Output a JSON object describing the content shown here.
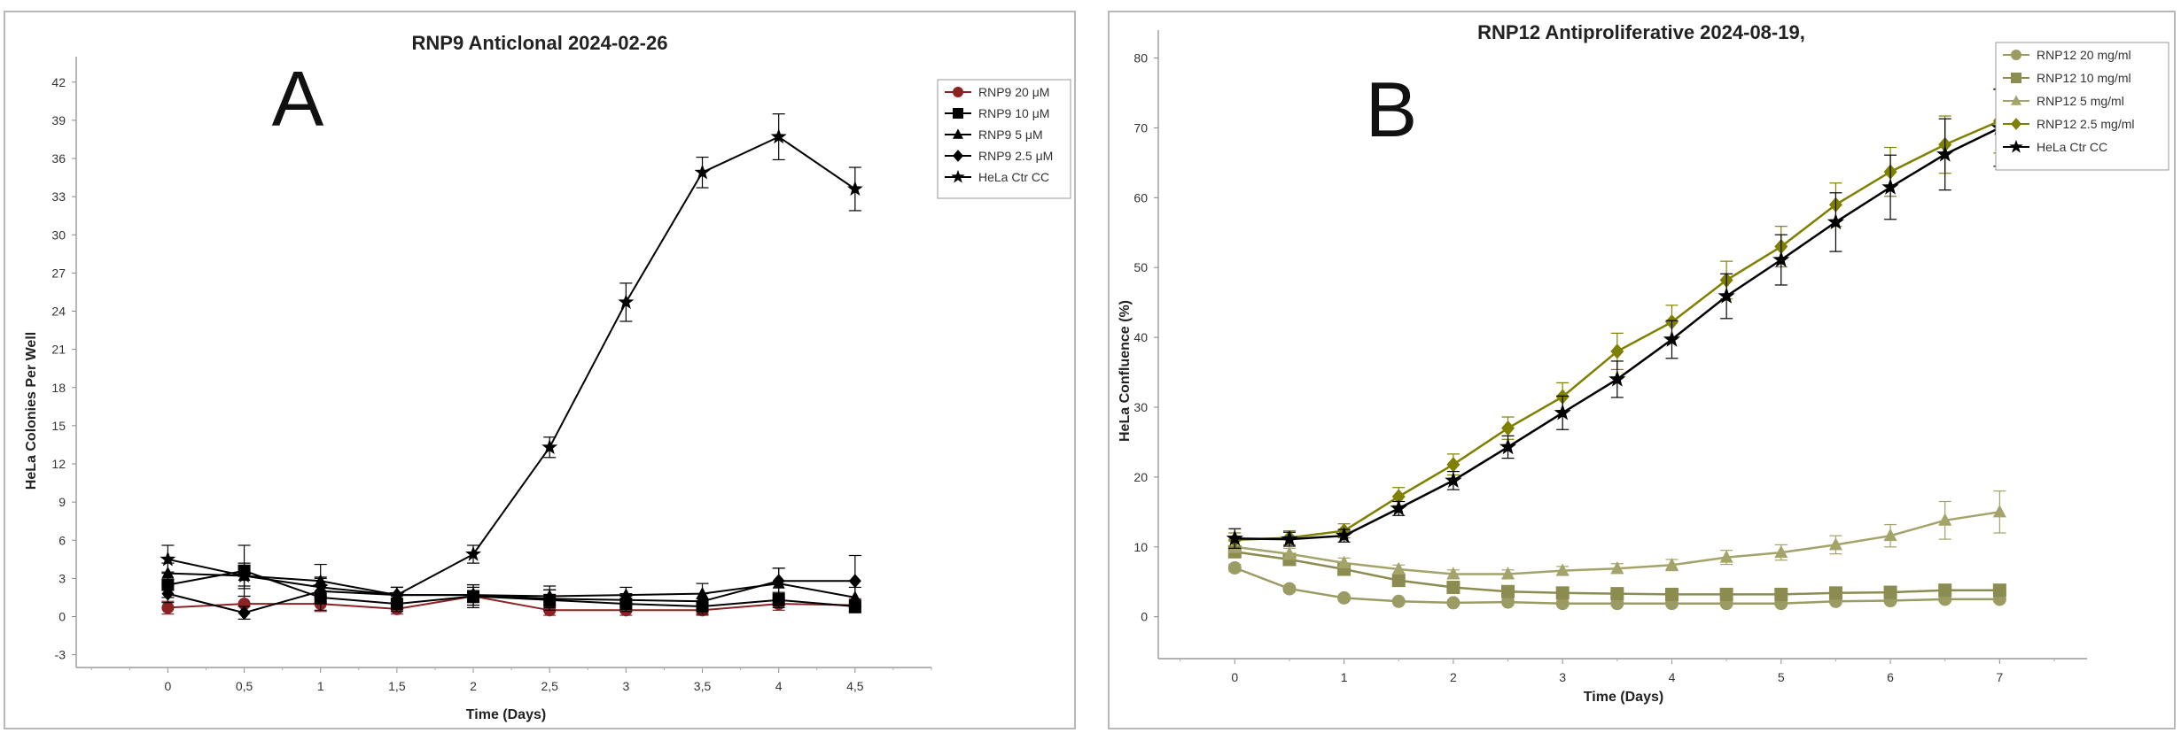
{
  "chart_data": [
    {
      "id": "A",
      "type": "line",
      "panel_letter": "A",
      "title": "RNP9 Anticlonal 2024-02-26",
      "xlabel": "Time (Days)",
      "ylabel": "HeLa Colonies Per Well",
      "x": [
        0,
        0.5,
        1,
        1.5,
        2,
        2.5,
        3,
        3.5,
        4,
        4.5
      ],
      "x_tick_labels": [
        "0",
        "0,5",
        "1",
        "1,5",
        "2",
        "2,5",
        "3",
        "3,5",
        "4",
        "4,5"
      ],
      "xlim": [
        -0.6,
        5.0
      ],
      "ylim": [
        -4,
        44
      ],
      "y_ticks": [
        -3,
        0,
        3,
        6,
        9,
        12,
        15,
        18,
        21,
        24,
        27,
        30,
        33,
        36,
        39,
        42
      ],
      "legend_position": "top-right",
      "series": [
        {
          "name": "RNP9 20 μM",
          "marker": "circle",
          "color": "#8b2323",
          "values": [
            0.7,
            1.0,
            1.0,
            0.6,
            1.6,
            0.5,
            0.5,
            0.5,
            1.0,
            0.9
          ],
          "errors": [
            0.5,
            0.6,
            0.6,
            0.4,
            0.7,
            0.4,
            0.4,
            0.4,
            0.5,
            0.5
          ]
        },
        {
          "name": "RNP9 10 μM",
          "marker": "square",
          "color": "#000000",
          "values": [
            2.5,
            3.6,
            1.5,
            1.0,
            1.6,
            1.3,
            1.0,
            0.8,
            1.3,
            0.8
          ],
          "errors": [
            1.0,
            2.0,
            1.0,
            0.6,
            0.9,
            0.8,
            0.6,
            0.6,
            0.6,
            0.5
          ]
        },
        {
          "name": "RNP9 5 μM",
          "marker": "triangle",
          "color": "#000000",
          "values": [
            3.4,
            3.2,
            2.8,
            1.7,
            1.7,
            1.6,
            1.7,
            1.8,
            2.6,
            1.5
          ],
          "errors": [
            0.8,
            1.0,
            1.3,
            0.6,
            0.8,
            0.8,
            0.6,
            0.8,
            1.2,
            0.8
          ]
        },
        {
          "name": "RNP9 2.5 μM",
          "marker": "diamond",
          "color": "#000000",
          "values": [
            1.8,
            0.3,
            2.0,
            1.7,
            1.7,
            1.4,
            1.3,
            1.2,
            2.8,
            2.8
          ],
          "errors": [
            0.7,
            0.5,
            1.0,
            0.6,
            0.6,
            0.7,
            0.5,
            0.6,
            1.0,
            2.0
          ]
        },
        {
          "name": "HeLa Ctr CC",
          "marker": "star",
          "color": "#000000",
          "values": [
            4.5,
            3.2,
            2.3,
            1.7,
            4.9,
            13.3,
            24.7,
            34.9,
            37.7,
            33.6
          ],
          "errors": [
            1.1,
            0.8,
            0.8,
            0.6,
            0.7,
            0.8,
            1.5,
            1.2,
            1.8,
            1.7
          ]
        }
      ]
    },
    {
      "id": "B",
      "type": "line",
      "panel_letter": "B",
      "title": "RNP12 Antiproliferative 2024-08-19,",
      "xlabel": "Time (Days)",
      "ylabel": "HeLa Confluence (%)",
      "x": [
        0,
        0.5,
        1,
        1.5,
        2,
        2.5,
        3,
        3.5,
        4,
        4.5,
        5,
        5.5,
        6,
        6.5,
        7
      ],
      "x_tick_labels": [
        "0",
        "1",
        "2",
        "3",
        "4",
        "5",
        "6",
        "7"
      ],
      "x_tick_values": [
        0,
        1,
        2,
        3,
        4,
        5,
        6,
        7
      ],
      "xlim": [
        -0.7,
        7.8
      ],
      "ylim": [
        -6,
        84
      ],
      "y_ticks": [
        0,
        10,
        20,
        30,
        40,
        50,
        60,
        70,
        80
      ],
      "legend_position": "top-right",
      "series": [
        {
          "name": "RNP12 20 mg/ml",
          "marker": "circle",
          "color": "#9b9b64",
          "values": [
            7.0,
            4.0,
            2.7,
            2.2,
            2.0,
            2.1,
            1.9,
            1.9,
            1.9,
            1.9,
            1.9,
            2.2,
            2.3,
            2.5,
            2.5
          ],
          "errors": [
            0.5,
            0.4,
            0.4,
            0.3,
            0.3,
            0.3,
            0.3,
            0.3,
            0.3,
            0.3,
            0.3,
            0.3,
            0.3,
            0.3,
            0.3
          ]
        },
        {
          "name": "RNP12 10 mg/ml",
          "marker": "square",
          "color": "#8c8c50",
          "values": [
            9.3,
            8.2,
            6.8,
            5.2,
            4.2,
            3.6,
            3.4,
            3.3,
            3.2,
            3.2,
            3.2,
            3.4,
            3.5,
            3.8,
            3.8
          ],
          "errors": [
            0.8,
            0.7,
            0.6,
            0.5,
            0.5,
            0.4,
            0.4,
            0.4,
            0.4,
            0.4,
            0.4,
            0.4,
            0.4,
            0.4,
            0.4
          ]
        },
        {
          "name": "RNP12 5 mg/ml",
          "marker": "triangle",
          "color": "#a3a36a",
          "values": [
            10.0,
            9.0,
            7.7,
            6.8,
            6.1,
            6.1,
            6.6,
            6.9,
            7.4,
            8.5,
            9.2,
            10.3,
            11.6,
            13.8,
            15.0
          ],
          "errors": [
            0.8,
            0.8,
            0.7,
            0.6,
            0.6,
            0.6,
            0.6,
            0.7,
            0.8,
            1.0,
            1.1,
            1.3,
            1.6,
            2.7,
            3.0
          ]
        },
        {
          "name": "RNP12 2.5 mg/ml",
          "marker": "diamond",
          "color": "#808000",
          "values": [
            11.0,
            11.3,
            12.3,
            17.2,
            21.8,
            27.0,
            31.5,
            38.0,
            42.2,
            48.2,
            53.0,
            59.0,
            63.7,
            67.6,
            71.0
          ],
          "errors": [
            1.0,
            1.0,
            1.0,
            1.3,
            1.5,
            1.6,
            2.0,
            2.6,
            2.4,
            2.7,
            2.9,
            3.1,
            3.5,
            4.1,
            4.6
          ]
        },
        {
          "name": "HeLa Ctr CC",
          "marker": "star",
          "color": "#000000",
          "values": [
            11.2,
            11.1,
            11.6,
            15.5,
            19.5,
            24.3,
            29.2,
            34.0,
            39.7,
            45.9,
            51.1,
            56.5,
            61.5,
            66.2,
            70.0
          ],
          "errors": [
            1.4,
            1.0,
            0.9,
            1.0,
            1.3,
            1.6,
            2.4,
            2.6,
            2.7,
            3.2,
            3.6,
            4.2,
            4.6,
            5.1,
            5.5
          ]
        }
      ]
    }
  ]
}
